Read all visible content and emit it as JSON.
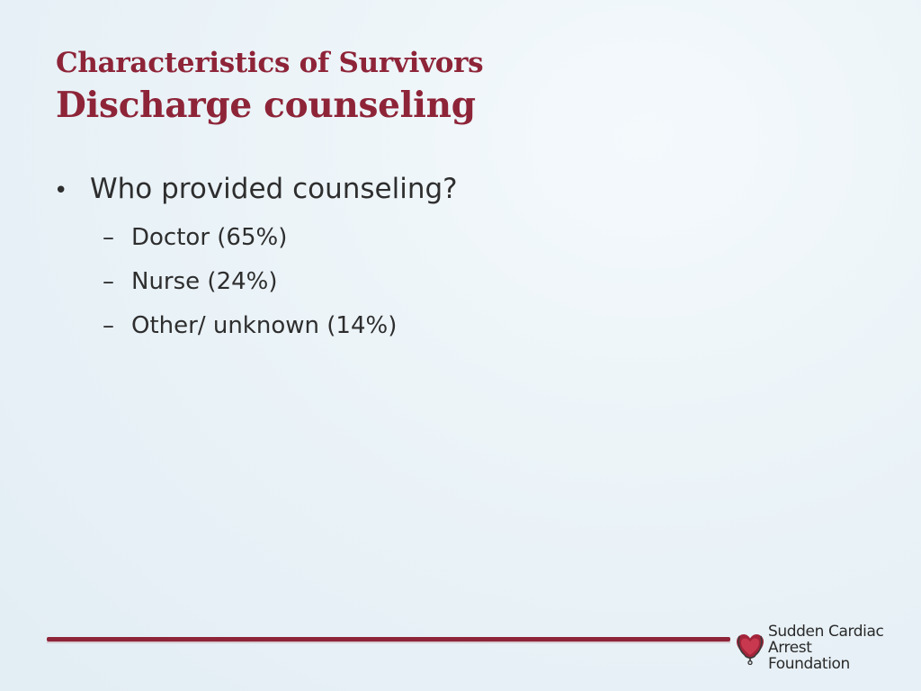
{
  "title": {
    "line1": "Characteristics of Survivors",
    "line2": "Discharge counseling"
  },
  "content": {
    "bullet_mark": "•",
    "sub_mark": "–",
    "question": "Who provided counseling?",
    "items": [
      "Doctor (65%)",
      "Nurse (24%)",
      "Other/ unknown (14%)"
    ]
  },
  "footer": {
    "logo_line1": "Sudden Cardiac",
    "logo_line2": "Arrest Foundation",
    "logo_icon": "heart-stethoscope-icon"
  },
  "colors": {
    "accent": "#8e2438",
    "text": "#2e2e2e",
    "background": "#e9f2f7"
  }
}
